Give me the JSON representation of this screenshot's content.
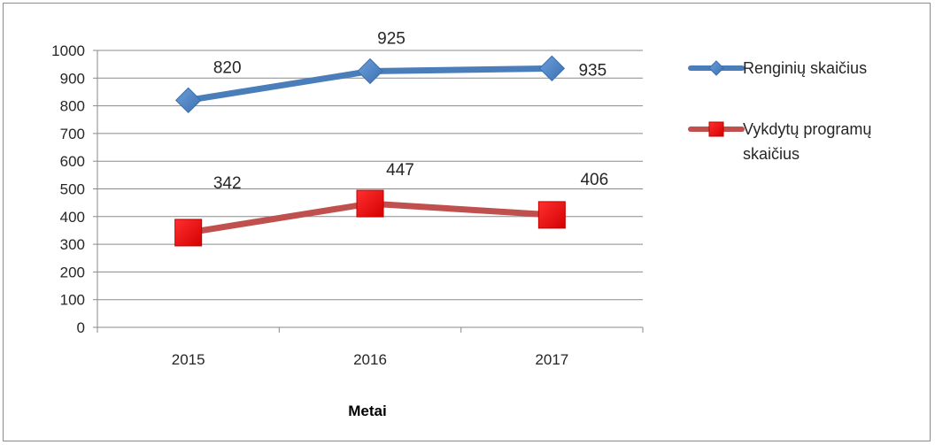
{
  "chart_data": {
    "type": "line",
    "title": "",
    "xlabel": "Metai",
    "ylabel": "",
    "categories": [
      "2015",
      "2016",
      "2017"
    ],
    "ylim": [
      0,
      1000
    ],
    "yticks": [
      "0",
      "100",
      "200",
      "300",
      "400",
      "500",
      "600",
      "700",
      "800",
      "900",
      "1000"
    ],
    "grid": true,
    "legend_position": "right",
    "series": [
      {
        "name": "Renginių skaičius",
        "values": [
          820,
          925,
          935
        ],
        "labels": [
          "820",
          "925",
          "935"
        ],
        "color": "#4a7ebb",
        "marker": "diamond"
      },
      {
        "name": "Vykdytų programų skaičius",
        "legend_lines": [
          "Vykdytų programų",
          "skaičius"
        ],
        "values": [
          342,
          447,
          406
        ],
        "labels": [
          "342",
          "447",
          "406"
        ],
        "color": "#c0504d",
        "marker": "square"
      }
    ]
  }
}
